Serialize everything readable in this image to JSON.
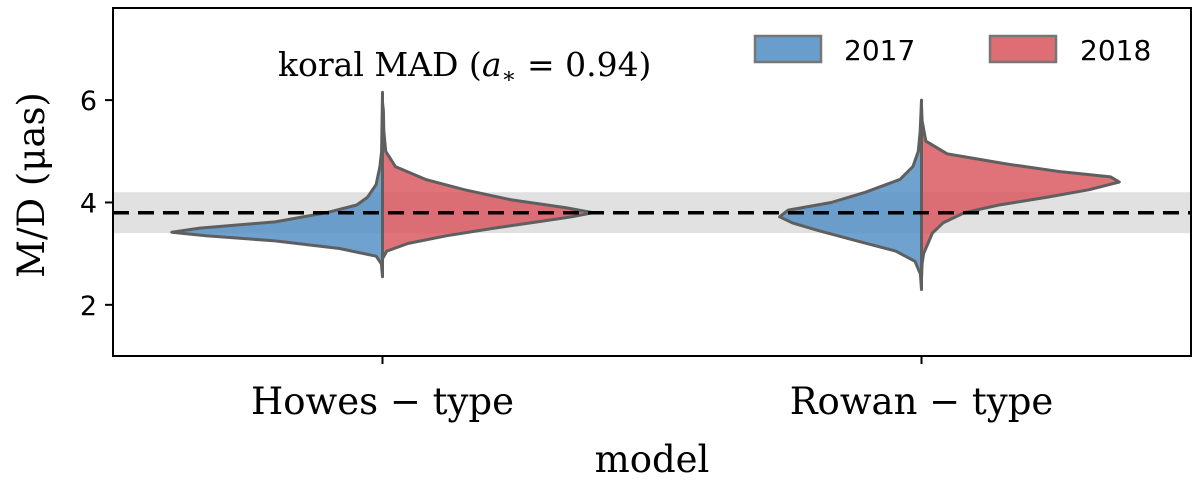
{
  "chart_data": {
    "type": "violin",
    "title": "",
    "annotation": "koral  MAD   (a* = 0.94)",
    "xlabel": "model",
    "ylabel": "M/D (μas)",
    "ylim": [
      1,
      7.8
    ],
    "yticks": [
      "2",
      "4",
      "6"
    ],
    "ytick_values": [
      2,
      4,
      6
    ],
    "categories": [
      "Howes − type",
      "Rowan − type"
    ],
    "legend": {
      "placement": "top-right",
      "entries": [
        "2017",
        "2018"
      ]
    },
    "reference": {
      "value": 3.8,
      "band": [
        3.4,
        4.2
      ],
      "style": "dashed",
      "color": "#000000",
      "band_color": "#d9d9d9"
    },
    "colors": {
      "2017": "#4f8ec4",
      "2018": "#d9545c",
      "edge": "#5f5f5f"
    },
    "series": [
      {
        "name": "2017",
        "side": "left",
        "violins": [
          {
            "category": "Howes − type",
            "profile": [
              [
                2.55,
                0
              ],
              [
                2.8,
                0.005
              ],
              [
                2.95,
                0.03
              ],
              [
                3.1,
                0.2
              ],
              [
                3.25,
                0.5
              ],
              [
                3.35,
                0.82
              ],
              [
                3.42,
                0.98
              ],
              [
                3.5,
                0.85
              ],
              [
                3.62,
                0.5
              ],
              [
                3.8,
                0.26
              ],
              [
                3.95,
                0.12
              ],
              [
                4.1,
                0.07
              ],
              [
                4.35,
                0.03
              ],
              [
                4.7,
                0.012
              ],
              [
                5.0,
                0.004
              ],
              [
                5.4,
                0.003
              ],
              [
                6.15,
                0
              ]
            ]
          },
          {
            "category": "Rowan − type",
            "profile": [
              [
                2.3,
                0
              ],
              [
                2.6,
                0.005
              ],
              [
                2.85,
                0.03
              ],
              [
                3.05,
                0.12
              ],
              [
                3.25,
                0.3
              ],
              [
                3.45,
                0.48
              ],
              [
                3.6,
                0.6
              ],
              [
                3.72,
                0.66
              ],
              [
                3.85,
                0.62
              ],
              [
                4.0,
                0.42
              ],
              [
                4.2,
                0.26
              ],
              [
                4.45,
                0.1
              ],
              [
                4.7,
                0.04
              ],
              [
                5.0,
                0.015
              ],
              [
                5.4,
                0.006
              ],
              [
                6.0,
                0
              ]
            ]
          }
        ]
      },
      {
        "name": "2018",
        "side": "right",
        "violins": [
          {
            "category": "Howes − type",
            "profile": [
              [
                2.9,
                0
              ],
              [
                3.05,
                0.02
              ],
              [
                3.2,
                0.12
              ],
              [
                3.35,
                0.3
              ],
              [
                3.5,
                0.52
              ],
              [
                3.62,
                0.72
              ],
              [
                3.72,
                0.88
              ],
              [
                3.8,
                0.98
              ],
              [
                3.9,
                0.85
              ],
              [
                4.05,
                0.6
              ],
              [
                4.25,
                0.38
              ],
              [
                4.45,
                0.2
              ],
              [
                4.7,
                0.06
              ],
              [
                5.0,
                0.015
              ],
              [
                5.4,
                0.006
              ],
              [
                5.8,
                0.004
              ],
              [
                5.95,
                0
              ]
            ]
          },
          {
            "category": "Rowan − type",
            "profile": [
              [
                2.5,
                0
              ],
              [
                2.8,
                0.003
              ],
              [
                3.0,
                0.01
              ],
              [
                3.2,
                0.03
              ],
              [
                3.4,
                0.05
              ],
              [
                3.6,
                0.1
              ],
              [
                3.8,
                0.2
              ],
              [
                3.95,
                0.36
              ],
              [
                4.1,
                0.58
              ],
              [
                4.25,
                0.78
              ],
              [
                4.4,
                0.92
              ],
              [
                4.5,
                0.88
              ],
              [
                4.6,
                0.65
              ],
              [
                4.75,
                0.4
              ],
              [
                4.95,
                0.12
              ],
              [
                5.2,
                0.02
              ],
              [
                5.6,
                0.003
              ],
              [
                5.9,
                0
              ]
            ]
          }
        ]
      }
    ]
  }
}
